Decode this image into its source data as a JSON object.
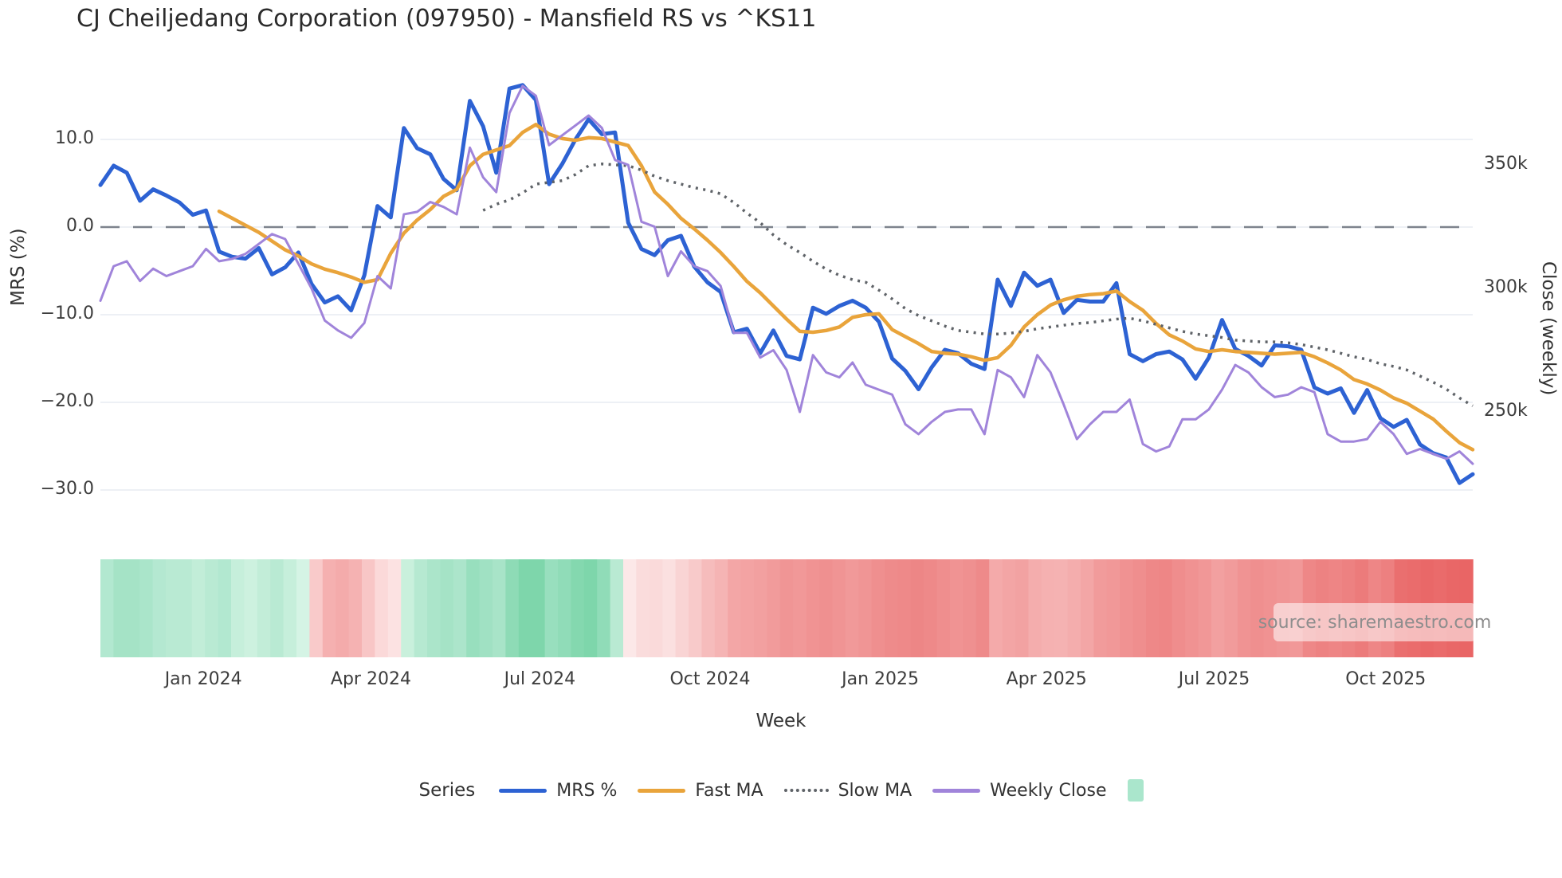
{
  "header": {
    "title": "CJ Cheiljedang Corporation (097950) - Mansfield RS vs ^KS11"
  },
  "axes": {
    "left_title": "MRS (%)",
    "right_title": "Close (weekly)",
    "x_title": "Week",
    "left_ticks": [
      {
        "label": "10.0",
        "value": 10
      },
      {
        "label": "0.0",
        "value": 0
      },
      {
        "label": "−10.0",
        "value": -10
      },
      {
        "label": "−20.0",
        "value": -20
      },
      {
        "label": "−30.0",
        "value": -30
      }
    ],
    "right_ticks": [
      {
        "label": "350k",
        "value": 350
      },
      {
        "label": "300k",
        "value": 300
      },
      {
        "label": "250k",
        "value": 250
      }
    ],
    "x_ticks": [
      {
        "label": "Jan 2024",
        "week": 7.8
      },
      {
        "label": "Apr 2024",
        "week": 20.5
      },
      {
        "label": "Jul 2024",
        "week": 33.3
      },
      {
        "label": "Oct 2024",
        "week": 46.2
      },
      {
        "label": "Jan 2025",
        "week": 59.1
      },
      {
        "label": "Apr 2025",
        "week": 71.7
      },
      {
        "label": "Jul 2025",
        "week": 84.4
      },
      {
        "label": "Oct 2025",
        "week": 97.4
      }
    ]
  },
  "legend": {
    "title": "Series",
    "items": [
      {
        "label": "MRS %"
      },
      {
        "label": "Fast MA"
      },
      {
        "label": "Slow MA"
      },
      {
        "label": "Weekly Close"
      }
    ],
    "heat_swatch_color": "#aae6cc"
  },
  "watermark": {
    "text": "source: sharemaestro.com"
  },
  "colors": {
    "mrs": "#2d62d3",
    "fast": "#e9a43b",
    "slow": "#5f6368",
    "close": "#a084da",
    "zero_line": "#7d838d",
    "grid": "#edf0f5",
    "tick_text": "#3d3d3d"
  },
  "chart_data": {
    "type": "line",
    "title": "CJ Cheiljedang Corporation (097950) - Mansfield RS vs ^KS11",
    "xlabel": "Week",
    "ylabel_left": "MRS (%)",
    "ylabel_right": "Close (weekly)",
    "x_range_weeks": 105,
    "ylim_left": [
      -32,
      17
    ],
    "ylim_right_k": [
      225,
      385
    ],
    "grid": true,
    "zero_dashed_line": 0,
    "legend_position": "bottom",
    "series": [
      {
        "name": "MRS %",
        "axis": "left",
        "style": "solid",
        "color": "#2d62d3",
        "width": 5,
        "values": [
          4.8,
          7.0,
          6.2,
          3.0,
          4.3,
          3.6,
          2.8,
          1.4,
          1.9,
          -2.8,
          -3.4,
          -3.6,
          -2.4,
          -5.4,
          -4.6,
          -2.9,
          -6.5,
          -8.6,
          -7.9,
          -9.5,
          -5.5,
          2.4,
          1.1,
          11.3,
          9.0,
          8.3,
          5.5,
          4.2,
          14.4,
          11.5,
          6.2,
          15.8,
          16.2,
          14.5,
          4.9,
          7.2,
          10.0,
          12.3,
          10.6,
          10.8,
          0.5,
          -2.5,
          -3.2,
          -1.5,
          -1.0,
          -4.5,
          -6.3,
          -7.4,
          -12.0,
          -11.6,
          -14.4,
          -11.8,
          -14.7,
          -15.1,
          -9.2,
          -9.9,
          -9.0,
          -8.4,
          -9.2,
          -10.8,
          -15.0,
          -16.4,
          -18.5,
          -16.0,
          -14.0,
          -14.4,
          -15.6,
          -16.2,
          -6.0,
          -9.0,
          -5.2,
          -6.7,
          -6.0,
          -9.8,
          -8.3,
          -8.5,
          -8.5,
          -6.4,
          -14.5,
          -15.3,
          -14.5,
          -14.2,
          -15.1,
          -17.3,
          -14.9,
          -10.6,
          -13.9,
          -14.7,
          -15.8,
          -13.5,
          -13.6,
          -14.0,
          -18.3,
          -19.0,
          -18.4,
          -21.2,
          -18.6,
          -21.8,
          -22.8,
          -22.0,
          -24.8,
          -25.8,
          -26.3,
          -29.2,
          -28.2
        ]
      },
      {
        "name": "Fast MA",
        "axis": "left",
        "style": "solid",
        "color": "#e9a43b",
        "width": 4.5,
        "values": [
          null,
          null,
          null,
          null,
          null,
          null,
          null,
          null,
          null,
          1.8,
          1.0,
          0.2,
          -0.6,
          -1.6,
          -2.6,
          -3.3,
          -4.2,
          -4.8,
          -5.2,
          -5.7,
          -6.3,
          -6.0,
          -3.0,
          -0.7,
          0.8,
          2.0,
          3.5,
          4.3,
          7.0,
          8.3,
          8.8,
          9.3,
          10.8,
          11.7,
          10.6,
          10.1,
          9.9,
          10.2,
          10.1,
          9.7,
          9.3,
          7.0,
          4.0,
          2.6,
          1.0,
          -0.2,
          -1.5,
          -2.9,
          -4.5,
          -6.2,
          -7.5,
          -9.0,
          -10.5,
          -11.9,
          -12.0,
          -11.8,
          -11.4,
          -10.3,
          -10.0,
          -9.9,
          -11.7,
          -12.5,
          -13.3,
          -14.2,
          -14.4,
          -14.5,
          -14.8,
          -15.2,
          -14.9,
          -13.5,
          -11.4,
          -10.0,
          -8.9,
          -8.3,
          -7.9,
          -7.7,
          -7.6,
          -7.3,
          -8.5,
          -9.5,
          -11.0,
          -12.3,
          -13.0,
          -13.9,
          -14.2,
          -14.0,
          -14.2,
          -14.3,
          -14.4,
          -14.5,
          -14.4,
          -14.3,
          -14.8,
          -15.5,
          -16.3,
          -17.4,
          -17.9,
          -18.6,
          -19.5,
          -20.1,
          -21.0,
          -21.9,
          -23.3,
          -24.6,
          -25.4
        ]
      },
      {
        "name": "Slow MA",
        "axis": "left",
        "style": "dotted",
        "color": "#5f6368",
        "width": 3.5,
        "values": [
          null,
          null,
          null,
          null,
          null,
          null,
          null,
          null,
          null,
          null,
          null,
          null,
          null,
          null,
          null,
          null,
          null,
          null,
          null,
          null,
          null,
          null,
          null,
          null,
          null,
          null,
          null,
          null,
          null,
          1.9,
          2.6,
          3.1,
          3.9,
          4.9,
          5.1,
          5.3,
          6.0,
          7.0,
          7.2,
          7.1,
          7.0,
          6.5,
          5.8,
          5.3,
          4.9,
          4.5,
          4.2,
          3.8,
          2.8,
          1.6,
          0.5,
          -0.9,
          -2.0,
          -2.9,
          -3.9,
          -4.8,
          -5.5,
          -6.0,
          -6.3,
          -7.2,
          -8.2,
          -9.3,
          -10.1,
          -10.7,
          -11.3,
          -11.8,
          -12.0,
          -12.2,
          -12.2,
          -12.1,
          -11.9,
          -11.6,
          -11.4,
          -11.2,
          -11.0,
          -10.9,
          -10.7,
          -10.5,
          -10.4,
          -10.7,
          -11.1,
          -11.5,
          -11.9,
          -12.2,
          -12.4,
          -12.6,
          -12.9,
          -13.0,
          -13.1,
          -13.1,
          -13.2,
          -13.4,
          -13.7,
          -14.0,
          -14.4,
          -14.8,
          -15.1,
          -15.6,
          -15.9,
          -16.3,
          -17.0,
          -17.7,
          -18.5,
          -19.5,
          -20.4
        ]
      },
      {
        "name": "Weekly Close",
        "axis": "right",
        "style": "solid",
        "color": "#a084da",
        "width": 3,
        "unit": "k",
        "values": [
          295,
          309,
          311,
          303,
          308,
          305,
          307,
          309,
          316,
          311,
          312,
          314,
          318,
          322,
          320,
          310,
          300,
          287,
          283,
          280,
          286,
          305,
          300,
          330,
          331,
          335,
          333,
          330,
          357,
          345,
          339,
          371,
          382,
          378,
          358,
          362,
          366,
          370,
          365,
          352,
          350,
          327,
          325,
          305,
          315,
          309,
          307,
          301,
          282,
          282,
          272,
          275,
          267,
          250,
          273,
          266,
          264,
          270,
          261,
          259,
          257,
          245,
          241,
          246,
          250,
          251,
          251,
          241,
          267,
          264,
          256,
          273,
          266,
          253,
          239,
          245,
          250,
          250,
          255,
          237,
          234,
          236,
          247,
          247,
          251,
          259,
          269,
          266,
          260,
          256,
          257,
          260,
          258,
          241,
          238,
          238,
          239,
          246,
          241,
          233,
          235,
          233,
          231,
          234,
          229
        ]
      }
    ],
    "heatmap_strip": {
      "cells": [
        "#b2e8d0",
        "#a5e3c6",
        "#a5e3c6",
        "#aae5ca",
        "#b4e8d1",
        "#b9ead3",
        "#b9ead3",
        "#c2edd8",
        "#b9ead3",
        "#b2e8d0",
        "#c6efdb",
        "#cdf1df",
        "#c2edd8",
        "#b9ead3",
        "#c6efdb",
        "#d5f4e5",
        "#f9caca",
        "#f5b0b0",
        "#f4abab",
        "#f5b2b2",
        "#f8c6c6",
        "#fbd9d9",
        "#fce2e2",
        "#c9f0dc",
        "#b6e9d1",
        "#abe5ca",
        "#a5e3c6",
        "#ace5cb",
        "#98dfbe",
        "#a0e1c3",
        "#a8e4c8",
        "#8edbb6",
        "#7ed6ab",
        "#7ed6ab",
        "#98dfbe",
        "#90dcb8",
        "#84d8af",
        "#7ed6ab",
        "#90dcb8",
        "#b9ead3",
        "#fce8e8",
        "#fadcdc",
        "#fadada",
        "#fbe0e0",
        "#f9d4d4",
        "#f8caca",
        "#f6bcbc",
        "#f5b4b4",
        "#f3a6a6",
        "#f3a3a3",
        "#f2a0a0",
        "#f19b9b",
        "#f09595",
        "#f19898",
        "#f09393",
        "#ef9090",
        "#f09494",
        "#f19999",
        "#f09595",
        "#ef8f8f",
        "#ee8b8b",
        "#ee8989",
        "#ed8686",
        "#ee8989",
        "#ef8e8e",
        "#f09393",
        "#ef9090",
        "#ee8a8a",
        "#f4aaaa",
        "#f3a5a5",
        "#f2a2a2",
        "#f4adad",
        "#f5b1b1",
        "#f5b2b2",
        "#f4adad",
        "#f3a6a6",
        "#f19b9b",
        "#f19898",
        "#f09292",
        "#ef8e8e",
        "#ee8888",
        "#ee8686",
        "#ef8d8d",
        "#f09292",
        "#f19797",
        "#f2a0a0",
        "#f19b9b",
        "#f09393",
        "#ef8f8f",
        "#f09292",
        "#f09595",
        "#f19898",
        "#ee8787",
        "#ed8282",
        "#ee8585",
        "#ed8181",
        "#ec7b7b",
        "#ee8686",
        "#ed8080",
        "#ea6f6f",
        "#ea6c6c",
        "#e96868",
        "#ea6b6b",
        "#e96767",
        "#e96565"
      ]
    }
  }
}
